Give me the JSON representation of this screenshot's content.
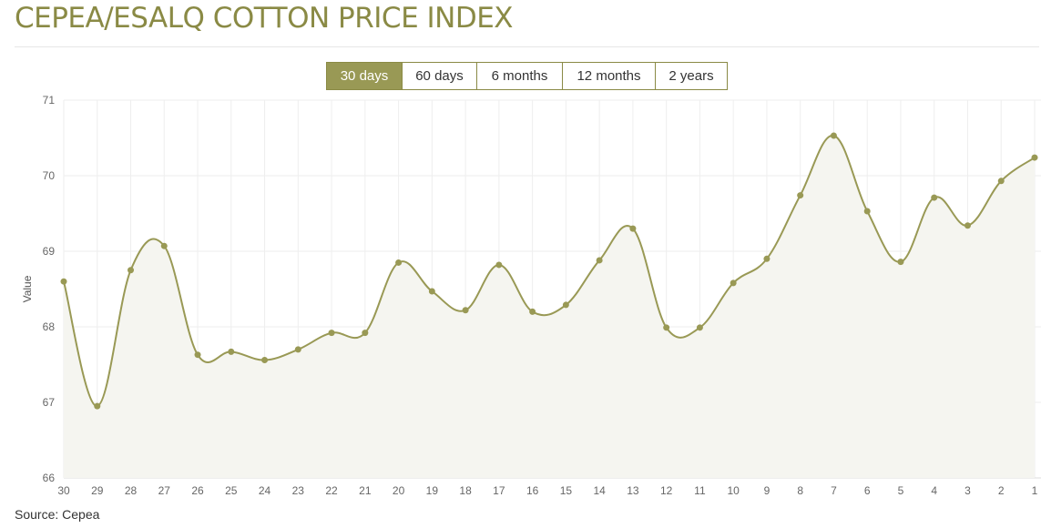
{
  "title": "CEPEA/ESALQ COTTON PRICE INDEX",
  "range_tabs": [
    {
      "label": "30 days",
      "active": true
    },
    {
      "label": "60 days",
      "active": false
    },
    {
      "label": "6 months",
      "active": false
    },
    {
      "label": "12 months",
      "active": false
    },
    {
      "label": "2 years",
      "active": false
    }
  ],
  "source": "Source: Cepea",
  "colors": {
    "title": "#8a8a45",
    "accent": "#999955",
    "line": "#999955",
    "area_fill": "#f5f5f0",
    "grid": "#eeeeee"
  },
  "chart_data": {
    "type": "area",
    "ylabel": "Value",
    "xlabel": "",
    "ylim": [
      66,
      71
    ],
    "yticks": [
      66,
      67,
      68,
      69,
      70,
      71
    ],
    "grid": true,
    "smooth": true,
    "categories": [
      "30",
      "29",
      "28",
      "27",
      "26",
      "25",
      "24",
      "23",
      "22",
      "21",
      "20",
      "19",
      "18",
      "17",
      "16",
      "15",
      "14",
      "13",
      "12",
      "11",
      "10",
      "9",
      "8",
      "7",
      "6",
      "5",
      "4",
      "3",
      "2",
      "1"
    ],
    "series": [
      {
        "values": [
          68.6,
          66.95,
          68.75,
          69.07,
          67.63,
          67.67,
          67.56,
          67.7,
          67.92,
          67.92,
          68.85,
          68.47,
          68.22,
          68.82,
          68.2,
          68.29,
          68.88,
          69.3,
          67.99,
          67.99,
          68.58,
          68.9,
          69.74,
          70.53,
          69.53,
          68.86,
          69.71,
          69.34,
          69.93,
          70.24
        ]
      }
    ]
  }
}
